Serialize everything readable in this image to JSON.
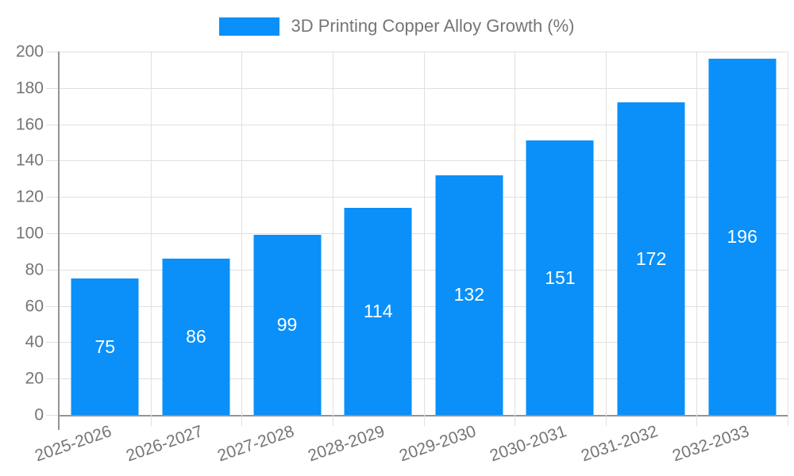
{
  "chart_data": {
    "type": "bar",
    "title": "3D Printing Copper Alloy Growth (%)",
    "legend_entries": [
      "3D Printing Copper Alloy Growth (%)"
    ],
    "legend_position": "top-center",
    "categories": [
      "2025-2026",
      "2026-2027",
      "2027-2028",
      "2028-2029",
      "2029-2030",
      "2030-2031",
      "2031-2032",
      "2032-2033"
    ],
    "values": [
      75,
      86,
      99,
      114,
      132,
      151,
      172,
      196
    ],
    "bar_labels_visible": true,
    "bar_label_position": "inside-center",
    "xlabel": "",
    "ylabel": "",
    "ylim": [
      0,
      200
    ],
    "yticks": [
      0,
      20,
      40,
      60,
      80,
      100,
      120,
      140,
      160,
      180,
      200
    ],
    "grid": true,
    "x_label_rotation_deg": -19
  },
  "style": {
    "bar_color": "#0a90f8",
    "bar_label_color": "#ffffff",
    "grid_color": "#e0e0e0",
    "axis_color": "#949494",
    "text_color": "#757575",
    "background": "#ffffff"
  }
}
